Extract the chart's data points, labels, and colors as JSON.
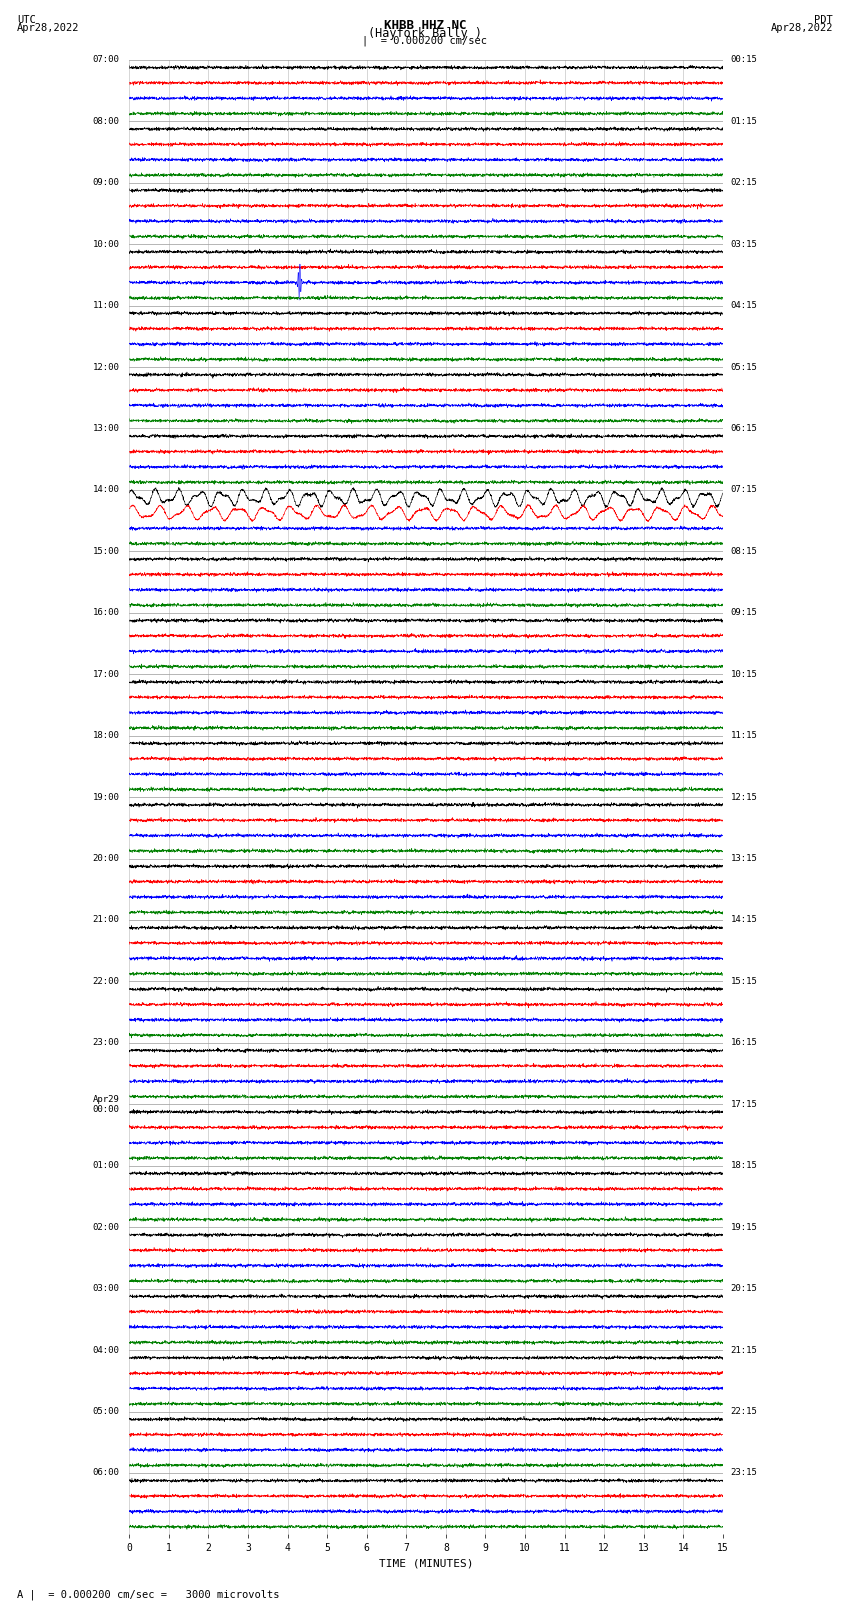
{
  "title_line1": "KHBB HHZ NC",
  "title_line2": "(Hayfork Bally )",
  "scale_label": "= 0.000200 cm/sec",
  "bottom_label": "= 0.000200 cm/sec =   3000 microvolts",
  "utc_label": "UTC\nApr28,2022",
  "pdt_label": "PDT\nApr28,2022",
  "xlabel": "TIME (MINUTES)",
  "left_times": [
    "07:00",
    "08:00",
    "09:00",
    "10:00",
    "11:00",
    "12:00",
    "13:00",
    "14:00",
    "15:00",
    "16:00",
    "17:00",
    "18:00",
    "19:00",
    "20:00",
    "21:00",
    "22:00",
    "23:00",
    "Apr29\n00:00",
    "01:00",
    "02:00",
    "03:00",
    "04:00",
    "05:00",
    "06:00"
  ],
  "right_times": [
    "00:15",
    "01:15",
    "02:15",
    "03:15",
    "04:15",
    "05:15",
    "06:15",
    "07:15",
    "08:15",
    "09:15",
    "10:15",
    "11:15",
    "12:15",
    "13:15",
    "14:15",
    "15:15",
    "16:15",
    "17:15",
    "18:15",
    "19:15",
    "20:15",
    "21:15",
    "22:15",
    "23:15"
  ],
  "n_hours": 24,
  "traces_per_hour": 4,
  "minutes_per_row": 15,
  "colors": [
    "black",
    "red",
    "blue",
    "green"
  ],
  "background_color": "white",
  "grid_color": "#999999",
  "spike_hour": 3,
  "spike_trace": 1,
  "spike_minute": 4.3,
  "noise_hour": 7,
  "noise_traces": [
    0,
    1
  ]
}
